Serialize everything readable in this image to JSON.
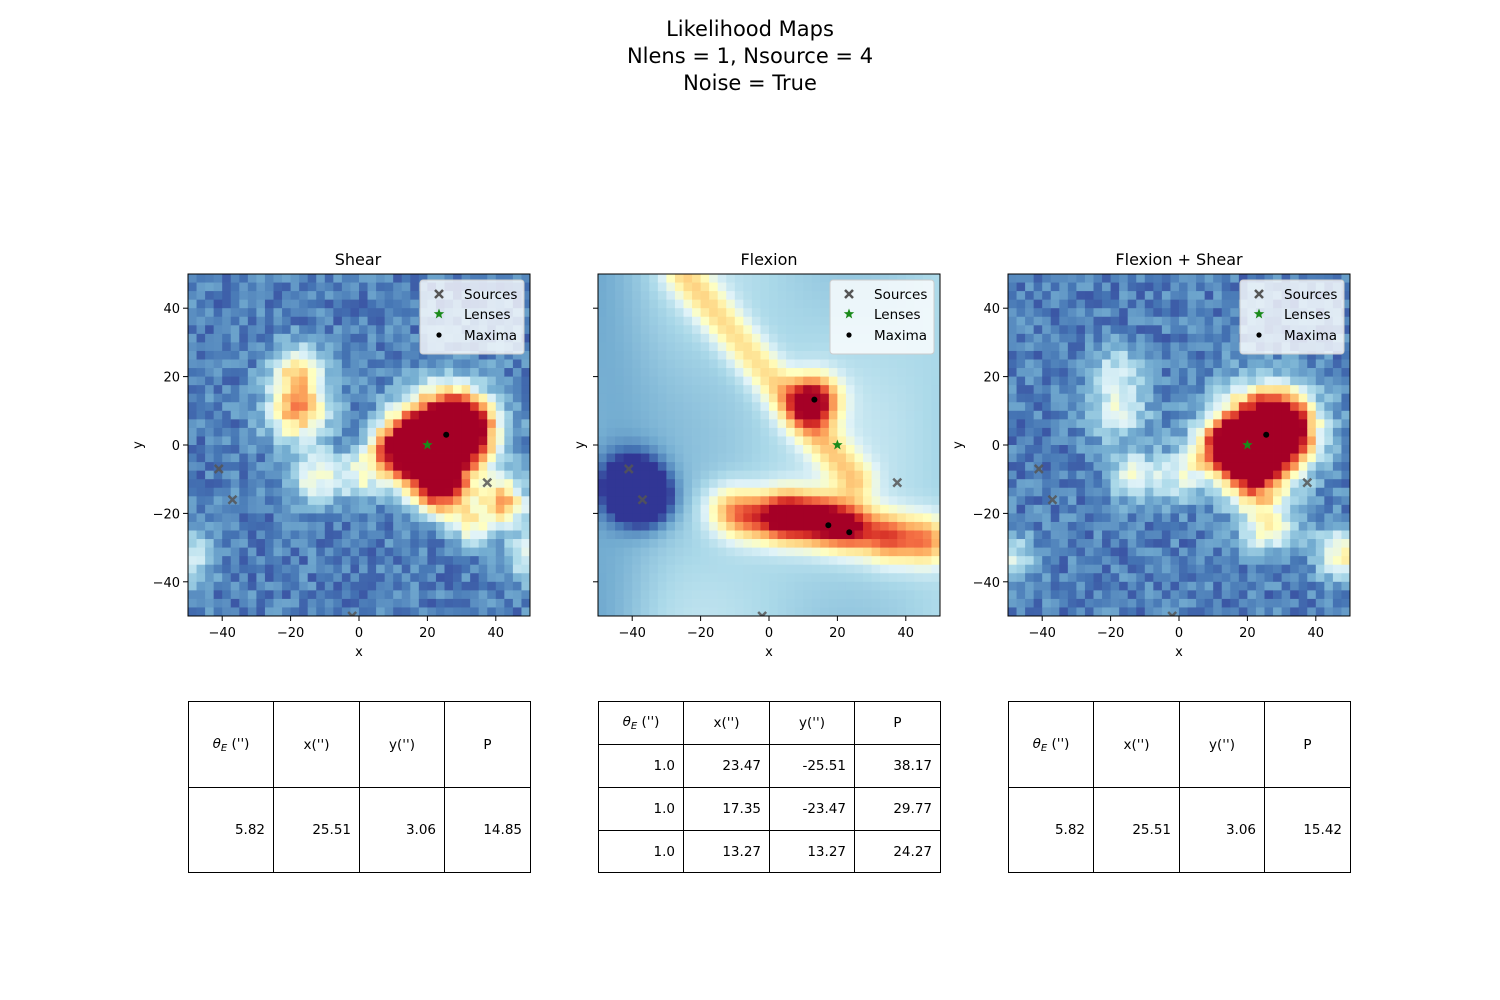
{
  "figure": {
    "title_lines": [
      "Likelihood Maps",
      "Nlens = 1, Nsource = 4",
      "Noise = True"
    ]
  },
  "legend": {
    "entries": [
      "Sources",
      "Lenses",
      "Maxima"
    ]
  },
  "colors": {
    "sources": "#555555",
    "lenses": "#1a8a1a",
    "maxima": "#000000"
  },
  "colormap": "RdYlBu_r",
  "chart_data": [
    {
      "type": "heatmap",
      "title": "Shear",
      "xlabel": "x",
      "ylabel": "y",
      "xlim": [
        -50,
        50
      ],
      "ylim": [
        -50,
        50
      ],
      "xticks": [
        -40,
        -20,
        0,
        20,
        40
      ],
      "yticks": [
        -40,
        -20,
        0,
        20,
        40
      ],
      "noise": true,
      "legend_position": "top-right",
      "sources": [
        [
          -41,
          -7
        ],
        [
          -37,
          -16
        ],
        [
          37.5,
          -11
        ],
        [
          -2,
          -50
        ]
      ],
      "lenses": [
        [
          20,
          0
        ]
      ],
      "maxima": [
        [
          25.5,
          3
        ]
      ],
      "blobs": [
        [
          25,
          3,
          9,
          1.0
        ],
        [
          30,
          5,
          6,
          0.8
        ],
        [
          17,
          0,
          6,
          0.7
        ],
        [
          22,
          -10,
          6,
          0.6
        ],
        [
          26,
          -15,
          5,
          0.35
        ],
        [
          42,
          -17,
          5,
          0.55
        ],
        [
          10,
          -2,
          5,
          0.5
        ],
        [
          -18,
          10,
          6,
          0.6
        ],
        [
          -18,
          22,
          5,
          0.45
        ],
        [
          -13,
          -9,
          5,
          0.35
        ],
        [
          0,
          -9,
          5,
          0.3
        ],
        [
          33,
          -24,
          4,
          0.3
        ],
        [
          -50,
          -33,
          5,
          0.3
        ],
        [
          50,
          -33,
          5,
          0.3
        ]
      ]
    },
    {
      "type": "heatmap",
      "title": "Flexion",
      "xlabel": "x",
      "ylabel": "",
      "xlim": [
        -50,
        50
      ],
      "ylim": [
        -50,
        50
      ],
      "xticks": [
        -40,
        -20,
        0,
        20,
        40
      ],
      "yticks": [
        -40,
        -20,
        0,
        20,
        40
      ],
      "noise": false,
      "legend_position": "top-right",
      "sources": [
        [
          -41,
          -7
        ],
        [
          -37,
          -16
        ],
        [
          37.5,
          -11
        ],
        [
          -2,
          -50
        ]
      ],
      "lenses": [
        [
          20,
          0
        ]
      ],
      "maxima": [
        [
          23.47,
          -25.51
        ],
        [
          17.35,
          -23.47
        ],
        [
          13.27,
          13.27
        ]
      ],
      "blobs": [
        [
          5,
          -21,
          5,
          0.8
        ],
        [
          15,
          -22,
          5,
          0.7
        ],
        [
          24,
          -24,
          5,
          0.6
        ],
        [
          35,
          -27,
          5,
          0.5
        ],
        [
          46,
          -28,
          5,
          0.45
        ],
        [
          -12,
          -19,
          5,
          0.3
        ],
        [
          -5,
          -21,
          5,
          0.4
        ],
        [
          13,
          13,
          5,
          0.75
        ],
        [
          -40,
          -12,
          6,
          -0.55
        ],
        [
          -36,
          -16,
          5,
          -0.4
        ]
      ]
    },
    {
      "type": "heatmap",
      "title": "Flexion + Shear",
      "xlabel": "x",
      "ylabel": "y",
      "xlim": [
        -50,
        50
      ],
      "ylim": [
        -50,
        50
      ],
      "xticks": [
        -40,
        -20,
        0,
        20,
        40
      ],
      "yticks": [
        -40,
        -20,
        0,
        20,
        40
      ],
      "noise": true,
      "legend_position": "top-right",
      "sources": [
        [
          -41,
          -7
        ],
        [
          -37,
          -16
        ],
        [
          37.5,
          -11
        ],
        [
          -2,
          -50
        ]
      ],
      "lenses": [
        [
          20,
          0
        ]
      ],
      "maxima": [
        [
          25.5,
          3
        ]
      ],
      "blobs": [
        [
          25,
          3,
          9,
          1.0
        ],
        [
          30,
          5,
          6,
          0.8
        ],
        [
          17,
          0,
          6,
          0.6
        ],
        [
          22,
          -10,
          6,
          0.55
        ],
        [
          26,
          -24,
          5,
          0.4
        ],
        [
          10,
          -2,
          5,
          0.35
        ],
        [
          -18,
          10,
          6,
          0.28
        ],
        [
          -18,
          22,
          5,
          0.22
        ],
        [
          -13,
          -9,
          5,
          0.3
        ],
        [
          0,
          -9,
          5,
          0.25
        ],
        [
          45,
          -30,
          5,
          0.2
        ],
        [
          -50,
          -33,
          5,
          0.28
        ],
        [
          50,
          -33,
          5,
          0.28
        ]
      ]
    }
  ],
  "tables": [
    {
      "headers": [
        "θE ('')",
        "x('')",
        "y('')",
        "P"
      ],
      "rows": [
        [
          "5.82",
          "25.51",
          "3.06",
          "14.85"
        ]
      ]
    },
    {
      "headers": [
        "θE ('')",
        "x('')",
        "y('')",
        "P"
      ],
      "rows": [
        [
          "1.0",
          "23.47",
          "-25.51",
          "38.17"
        ],
        [
          "1.0",
          "17.35",
          "-23.47",
          "29.77"
        ],
        [
          "1.0",
          "13.27",
          "13.27",
          "24.27"
        ]
      ]
    },
    {
      "headers": [
        "θE ('')",
        "x('')",
        "y('')",
        "P"
      ],
      "rows": [
        [
          "5.82",
          "25.51",
          "3.06",
          "15.42"
        ]
      ]
    }
  ]
}
